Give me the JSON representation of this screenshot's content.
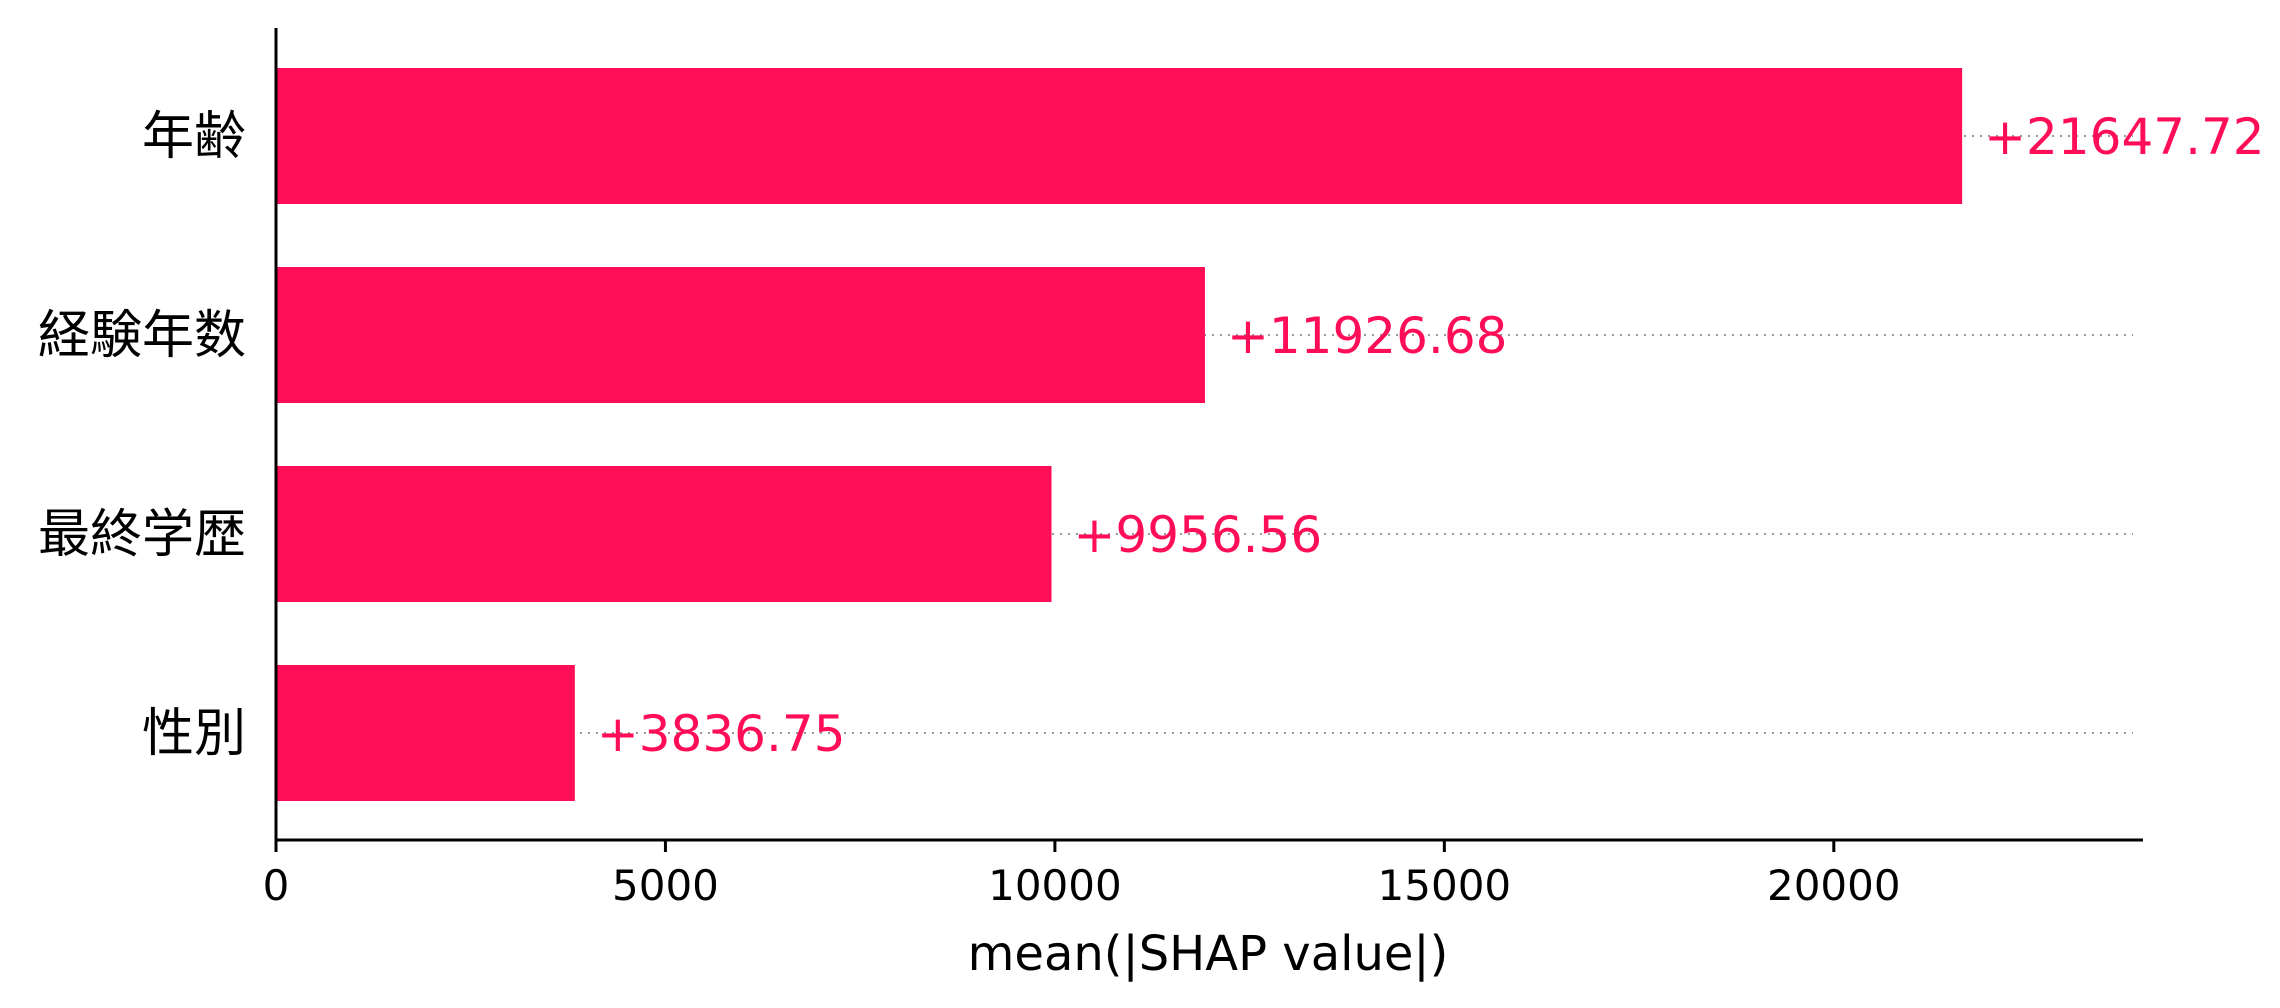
{
  "chart_data": {
    "type": "bar",
    "orientation": "horizontal",
    "categories": [
      "年齢",
      "経験年数",
      "最終学歴",
      "性別"
    ],
    "values": [
      21647.72,
      11926.68,
      9956.56,
      3836.75
    ],
    "value_labels": [
      "+21647.72",
      "+11926.68",
      "+9956.56",
      "+3836.75"
    ],
    "xlabel": "mean(|SHAP value|)",
    "ylabel": "",
    "title": "",
    "xlim": [
      0,
      23900
    ],
    "x_ticks": [
      0,
      5000,
      10000,
      15000,
      20000
    ],
    "x_tick_labels": [
      "0",
      "5000",
      "10000",
      "15000",
      "20000"
    ],
    "grid": false,
    "bar_color": "#ff0d57"
  }
}
